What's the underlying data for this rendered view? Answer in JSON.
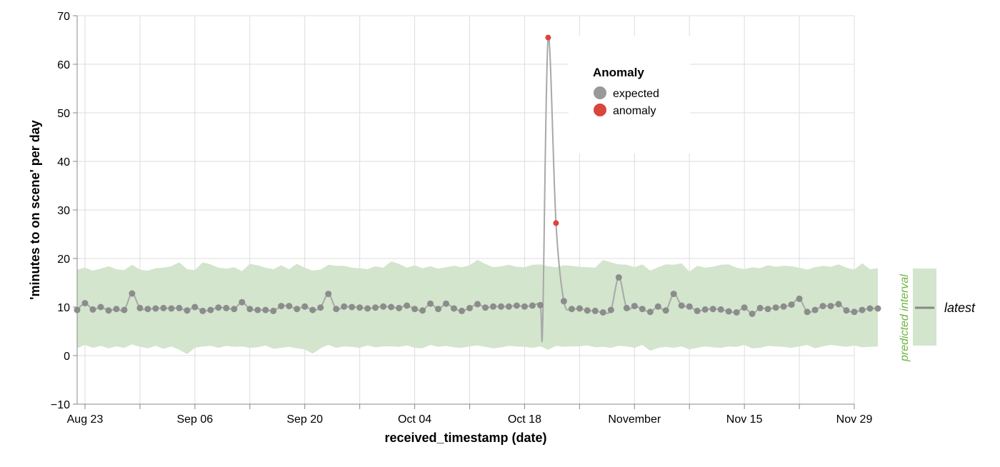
{
  "chart_data": {
    "type": "line",
    "xlabel": "received_timestamp (date)",
    "ylabel": "'minutes to on scene' per day",
    "ylim": [
      -10,
      70
    ],
    "yticks": [
      -10,
      0,
      10,
      20,
      30,
      40,
      50,
      60,
      70
    ],
    "xrange": [
      "2020-08-22",
      "2020-11-29"
    ],
    "xticks": [
      {
        "date": "2020-08-23",
        "label": "Aug 23"
      },
      {
        "date": "2020-09-06",
        "label": "Sep 06"
      },
      {
        "date": "2020-09-20",
        "label": "Sep 20"
      },
      {
        "date": "2020-10-04",
        "label": "Oct 04"
      },
      {
        "date": "2020-10-18",
        "label": "Oct 18"
      },
      {
        "date": "2020-11-01",
        "label": "November"
      },
      {
        "date": "2020-11-15",
        "label": "Nov 15"
      },
      {
        "date": "2020-11-29",
        "label": "Nov 29"
      }
    ],
    "minor_xticks": [
      "2020-08-30",
      "2020-09-13",
      "2020-09-27",
      "2020-10-11",
      "2020-10-25",
      "2020-11-08",
      "2020-11-22"
    ],
    "grid": true,
    "start_date": "2020-08-22",
    "values": [
      9.4,
      10.8,
      9.5,
      10.0,
      9.3,
      9.6,
      9.4,
      12.8,
      9.8,
      9.6,
      9.7,
      9.8,
      9.7,
      9.8,
      9.3,
      10.0,
      9.2,
      9.4,
      9.9,
      9.8,
      9.6,
      11.0,
      9.6,
      9.4,
      9.4,
      9.2,
      10.2,
      10.2,
      9.6,
      10.1,
      9.4,
      9.9,
      12.7,
      9.6,
      10.1,
      10.0,
      9.9,
      9.7,
      9.9,
      10.1,
      10.0,
      9.8,
      10.3,
      9.6,
      9.3,
      10.7,
      9.6,
      10.7,
      9.7,
      9.2,
      9.8,
      10.6,
      9.9,
      10.1,
      10.1,
      10.1,
      10.3,
      10.1,
      10.3,
      10.4,
      65.5,
      27.3,
      11.2,
      9.6,
      9.7,
      9.3,
      9.2,
      8.9,
      9.4,
      16.1,
      9.8,
      10.2,
      9.6,
      9.0,
      10.1,
      9.3,
      12.7,
      10.3,
      10.1,
      9.2,
      9.5,
      9.6,
      9.5,
      9.1,
      8.9,
      9.9,
      8.6,
      9.8,
      9.6,
      9.9,
      10.1,
      10.5,
      11.7,
      9.0,
      9.4,
      10.2,
      10.2,
      10.6,
      9.3,
      9.0,
      9.4,
      9.7,
      9.7
    ],
    "anomaly": [
      60,
      61
    ],
    "band_lower": [
      1.5,
      2.2,
      1.6,
      2.0,
      1.5,
      1.9,
      1.6,
      2.3,
      1.8,
      1.5,
      2.0,
      1.4,
      1.9,
      1.2,
      0.3,
      1.6,
      1.9,
      2.0,
      1.6,
      2.0,
      1.8,
      1.9,
      1.6,
      1.7,
      2.1,
      1.4,
      1.6,
      1.8,
      1.5,
      1.3,
      0.4,
      1.5,
      2.2,
      1.6,
      1.9,
      1.8,
      1.6,
      2.1,
      1.7,
      1.9,
      1.9,
      1.8,
      2.1,
      1.6,
      1.5,
      2.2,
      1.8,
      2.0,
      1.7,
      1.6,
      1.9,
      2.1,
      1.8,
      1.5,
      1.7,
      2.0,
      1.9,
      1.8,
      1.6,
      1.9,
      1.2,
      2.0,
      1.8,
      1.9,
      1.9,
      2.1,
      1.7,
      1.8,
      1.6,
      2.0,
      1.9,
      1.6,
      2.2,
      1.0,
      1.6,
      1.8,
      1.6,
      1.9,
      1.3,
      1.6,
      1.9,
      1.7,
      1.6,
      1.9,
      1.8,
      2.2,
      1.5,
      1.6,
      2.0,
      1.9,
      1.8,
      1.6,
      1.9,
      2.2,
      1.5,
      1.9,
      2.2,
      2.0,
      1.8,
      2.1,
      1.7,
      1.8,
      1.9
    ],
    "band_upper": [
      17.7,
      18.1,
      17.5,
      17.9,
      18.4,
      17.8,
      17.6,
      18.7,
      17.7,
      17.5,
      18.0,
      18.1,
      18.4,
      19.2,
      17.8,
      17.6,
      19.2,
      18.8,
      18.1,
      17.9,
      18.2,
      17.4,
      18.9,
      18.6,
      18.1,
      17.8,
      18.6,
      17.8,
      18.9,
      18.1,
      17.5,
      17.7,
      18.7,
      18.5,
      18.5,
      18.1,
      18.0,
      17.8,
      18.4,
      18.1,
      19.4,
      18.9,
      18.1,
      18.6,
      18.0,
      18.4,
      17.9,
      18.2,
      18.5,
      18.2,
      18.6,
      19.7,
      18.9,
      18.2,
      18.4,
      18.7,
      18.3,
      18.2,
      18.7,
      18.8,
      18.4,
      18.2,
      18.6,
      18.5,
      18.3,
      18.2,
      18.1,
      19.7,
      19.2,
      18.8,
      18.7,
      18.2,
      18.8,
      17.5,
      18.2,
      18.8,
      18.7,
      19.0,
      17.3,
      18.5,
      18.1,
      18.3,
      18.7,
      18.8,
      18.1,
      17.8,
      18.2,
      18.0,
      18.6,
      18.3,
      18.5,
      18.4,
      18.1,
      17.7,
      18.2,
      18.5,
      18.3,
      18.8,
      18.1,
      17.7,
      19.0,
      17.8,
      18.0
    ],
    "dip": {
      "index": 59.3,
      "value": 6.2
    },
    "legend": {
      "title": "Anomaly",
      "entries": [
        {
          "label": "expected",
          "color": "#999999"
        },
        {
          "label": "anomaly",
          "color": "#d9463b"
        }
      ],
      "placement": "top-right"
    },
    "band_legend": {
      "band_label": "predicted interval",
      "line_label": "latest",
      "placement": "right"
    },
    "colors": {
      "band": "#d3e5cd",
      "line": "#a8a8a8",
      "point": "#8c8c8c",
      "anomaly": "#d9463b",
      "grid": "#dddddd",
      "band_text": "#6db33f"
    }
  }
}
